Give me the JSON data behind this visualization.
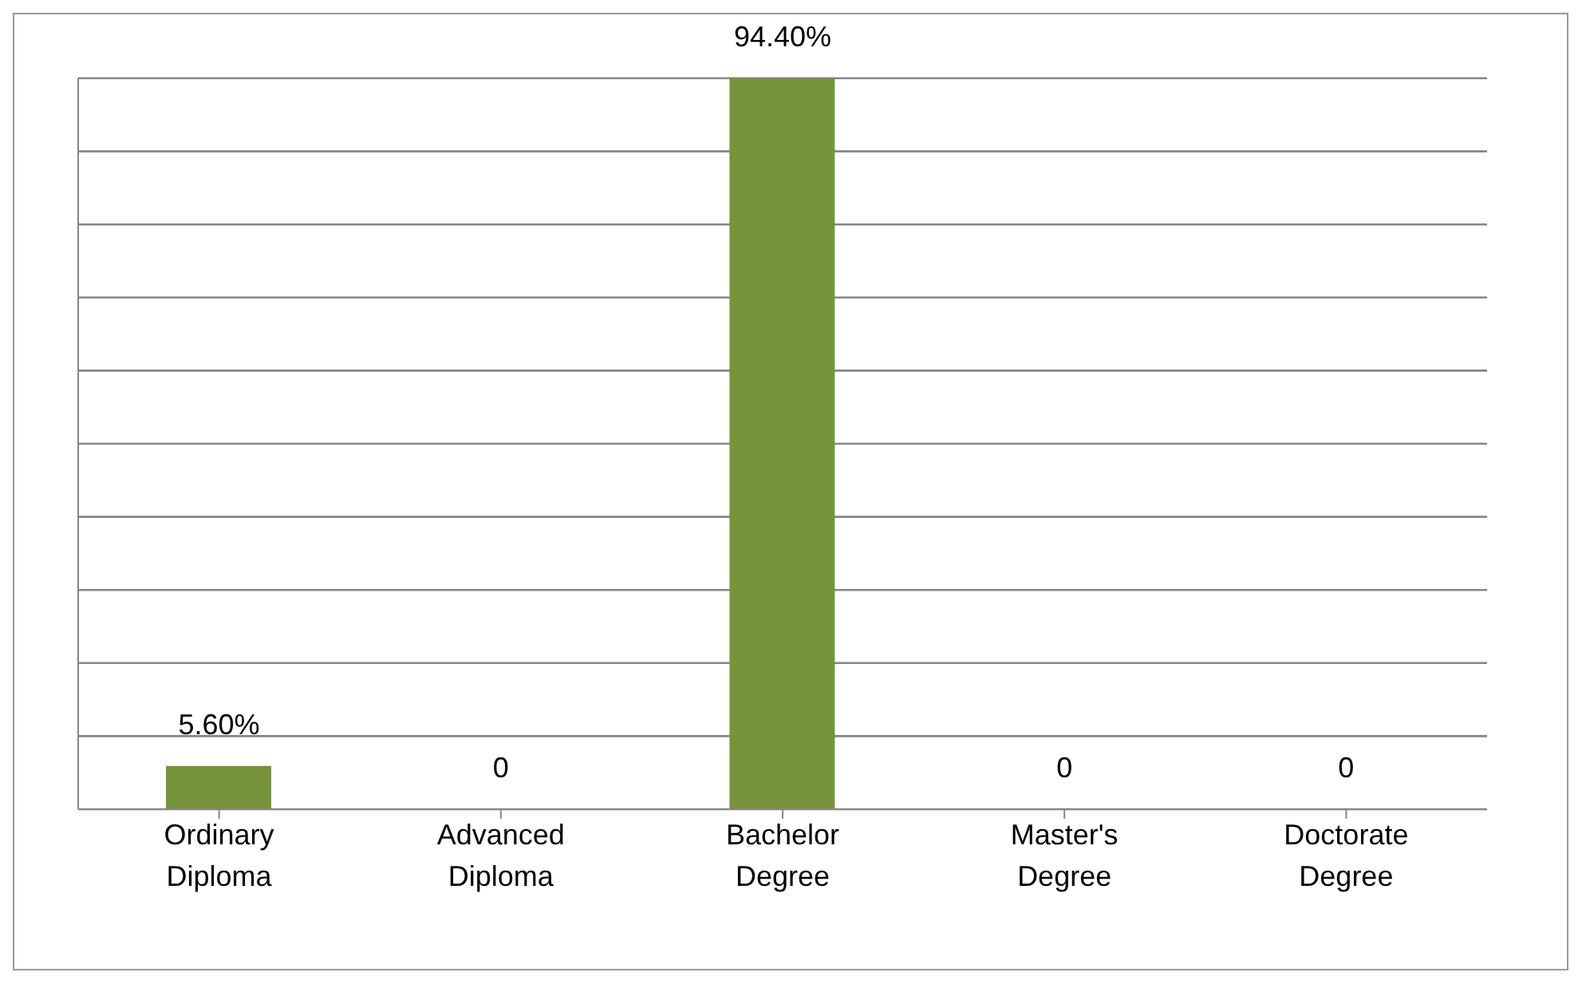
{
  "chart_data": {
    "type": "bar",
    "categories": [
      "Ordinary Diploma",
      "Advanced Diploma",
      "Bachelor Degree",
      "Master's Degree",
      "Doctorate Degree"
    ],
    "values": [
      5.6,
      0,
      94.4,
      0,
      0
    ],
    "value_labels": [
      "5.60%",
      "0",
      "94.40%",
      "0",
      "0"
    ],
    "color": "#77933c",
    "grid": "y",
    "tick_labels": "x"
  }
}
